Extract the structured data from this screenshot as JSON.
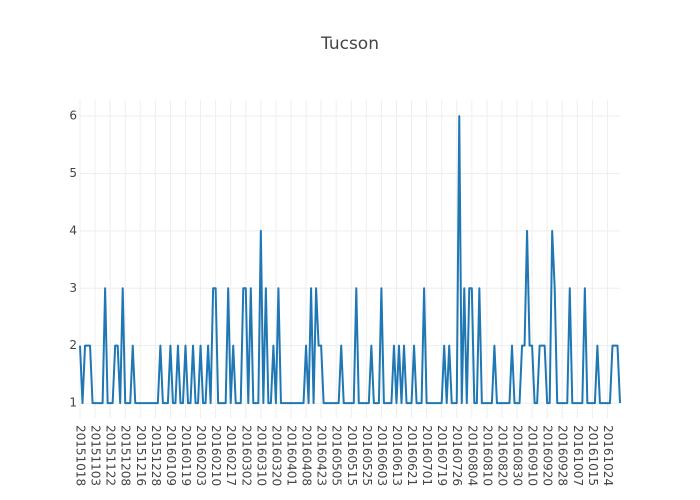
{
  "chart_data": {
    "type": "line",
    "title": "Tucson",
    "categories": [
      "20151018",
      null,
      null,
      null,
      null,
      null,
      "20151103",
      null,
      null,
      null,
      null,
      null,
      "20151122",
      null,
      null,
      null,
      null,
      null,
      "20151208",
      null,
      null,
      null,
      null,
      null,
      "20151216",
      null,
      null,
      null,
      null,
      null,
      "20151228",
      null,
      null,
      null,
      null,
      null,
      "20160109",
      null,
      null,
      null,
      null,
      null,
      "20160119",
      null,
      null,
      null,
      null,
      null,
      "20160203",
      null,
      null,
      null,
      null,
      null,
      "20160210",
      null,
      null,
      null,
      null,
      null,
      "20160217",
      null,
      null,
      null,
      null,
      null,
      "20160302",
      null,
      null,
      null,
      null,
      null,
      "20160310",
      null,
      null,
      null,
      null,
      null,
      "20160320",
      null,
      null,
      null,
      null,
      null,
      "20160401",
      null,
      null,
      null,
      null,
      null,
      "20160408",
      null,
      null,
      null,
      null,
      null,
      "20160423",
      null,
      null,
      null,
      null,
      null,
      "20160505",
      null,
      null,
      null,
      null,
      null,
      "20160515",
      null,
      null,
      null,
      null,
      null,
      "20160525",
      null,
      null,
      null,
      null,
      null,
      "20160603",
      null,
      null,
      null,
      null,
      null,
      "20160613",
      null,
      null,
      null,
      null,
      null,
      "20160621",
      null,
      null,
      null,
      null,
      null,
      "20160701",
      null,
      null,
      null,
      null,
      null,
      "20160719",
      null,
      null,
      null,
      null,
      null,
      "20160726",
      null,
      null,
      null,
      null,
      null,
      "20160804",
      null,
      null,
      null,
      null,
      null,
      "20160810",
      null,
      null,
      null,
      null,
      null,
      "20160820",
      null,
      null,
      null,
      null,
      null,
      "20160830",
      null,
      null,
      null,
      null,
      null,
      "20160910",
      null,
      null,
      null,
      null,
      null,
      "20160920",
      null,
      null,
      null,
      null,
      null,
      "20160928",
      null,
      null,
      null,
      null,
      null,
      "20161007",
      null,
      null,
      null,
      null,
      null,
      "20161015",
      null,
      null,
      null,
      null,
      null,
      "20161024",
      null,
      null,
      null,
      null,
      null
    ],
    "series": [
      {
        "color": "#1f77b4",
        "values": [
          2,
          1,
          2,
          2,
          2,
          1,
          1,
          1,
          1,
          1,
          3,
          1,
          1,
          1,
          2,
          2,
          1,
          3,
          1,
          1,
          1,
          2,
          1,
          1,
          1,
          1,
          1,
          1,
          1,
          1,
          1,
          1,
          2,
          1,
          1,
          1,
          2,
          1,
          1,
          2,
          1,
          1,
          2,
          1,
          1,
          2,
          1,
          1,
          2,
          1,
          1,
          2,
          1,
          3,
          3,
          1,
          1,
          1,
          1,
          3,
          1,
          2,
          1,
          1,
          1,
          3,
          3,
          1,
          3,
          1,
          1,
          1,
          4,
          1,
          3,
          1,
          1,
          2,
          1,
          3,
          1,
          1,
          1,
          1,
          1,
          1,
          1,
          1,
          1,
          1,
          2,
          1,
          3,
          1,
          3,
          2,
          2,
          1,
          1,
          1,
          1,
          1,
          1,
          1,
          2,
          1,
          1,
          1,
          1,
          1,
          3,
          1,
          1,
          1,
          1,
          1,
          2,
          1,
          1,
          1,
          3,
          1,
          1,
          1,
          1,
          2,
          1,
          2,
          1,
          2,
          1,
          1,
          1,
          2,
          1,
          1,
          1,
          3,
          1,
          1,
          1,
          1,
          1,
          1,
          1,
          2,
          1,
          2,
          1,
          1,
          1,
          6,
          1,
          3,
          1,
          3,
          3,
          1,
          1,
          3,
          1,
          1,
          1,
          1,
          1,
          2,
          1,
          1,
          1,
          1,
          1,
          1,
          2,
          1,
          1,
          1,
          2,
          2,
          4,
          2,
          2,
          1,
          1,
          2,
          2,
          2,
          1,
          1,
          4,
          3,
          1,
          1,
          1,
          1,
          1,
          3,
          1,
          1,
          1,
          1,
          1,
          3,
          1,
          1,
          1,
          1,
          2,
          1,
          1,
          1,
          1,
          1,
          2,
          2,
          2,
          1
        ]
      }
    ],
    "ylim": [
      0.74,
      6.28
    ],
    "yticks": [
      1,
      2,
      3,
      4,
      5,
      6
    ],
    "grid": true
  }
}
